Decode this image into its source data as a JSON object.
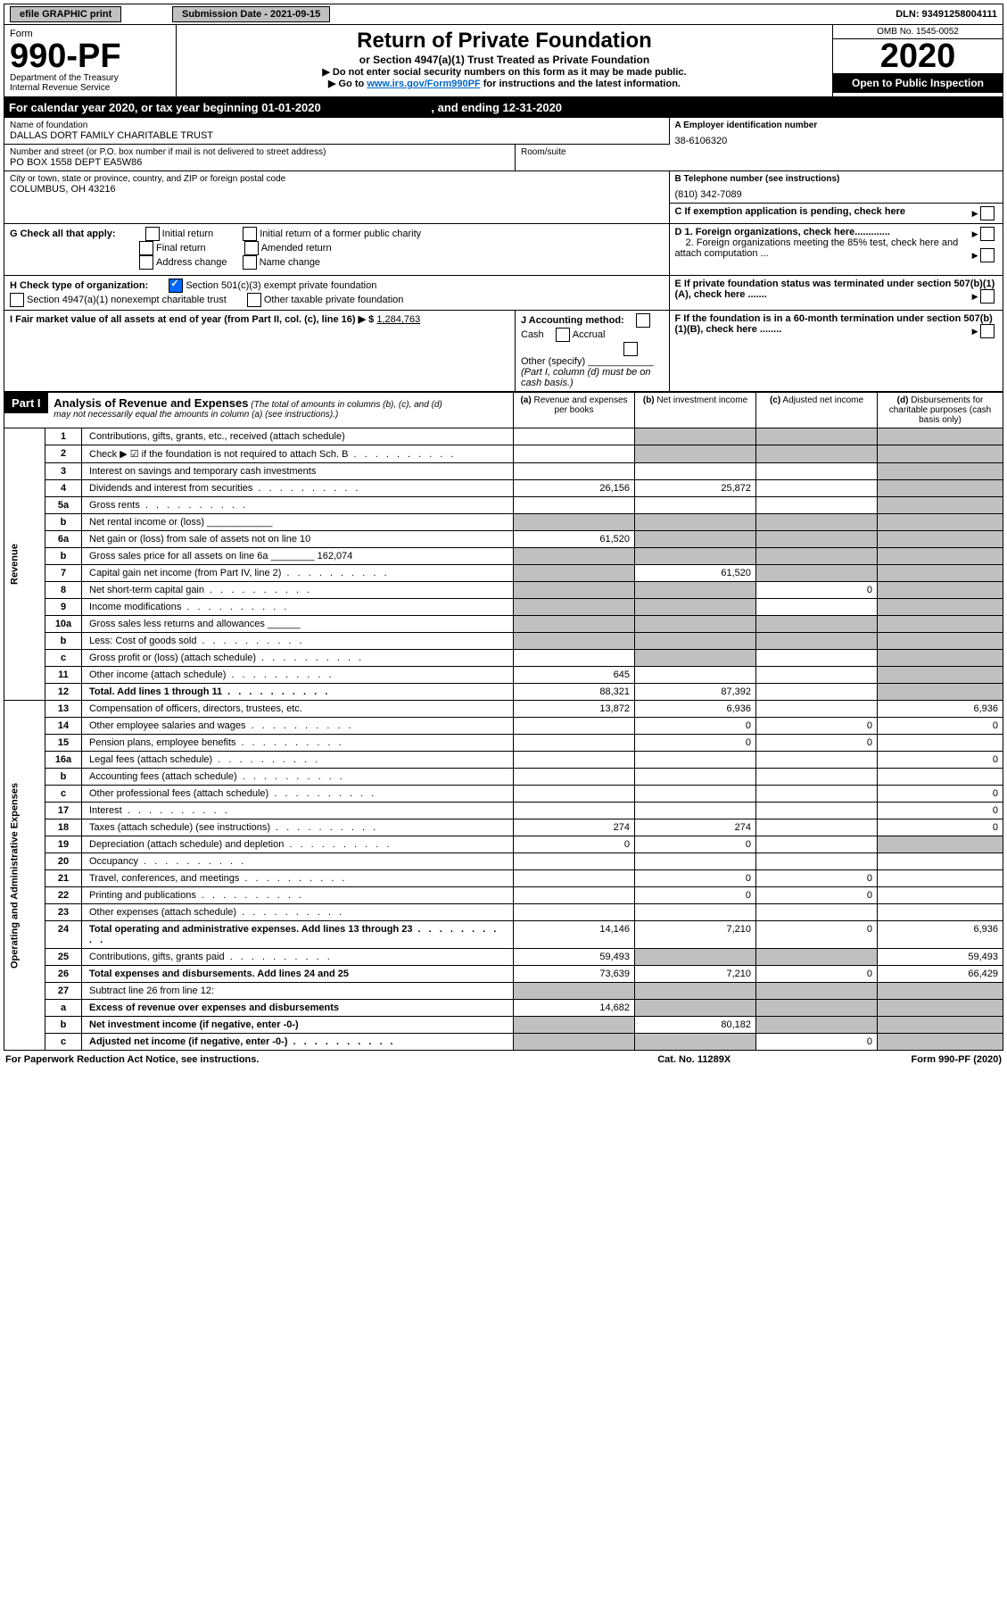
{
  "topbar": {
    "print": "efile GRAPHIC print",
    "sub_label": "Submission Date - 2021-09-15",
    "dln": "DLN: 93491258004111"
  },
  "header": {
    "form_word": "Form",
    "form_no": "990-PF",
    "dept1": "Department of the Treasury",
    "dept2": "Internal Revenue Service",
    "title": "Return of Private Foundation",
    "subtitle": "or Section 4947(a)(1) Trust Treated as Private Foundation",
    "caution1": "▶ Do not enter social security numbers on this form as it may be made public.",
    "caution2_pre": "▶ Go to ",
    "caution2_link": "www.irs.gov/Form990PF",
    "caution2_post": " for instructions and the latest information.",
    "omb": "OMB No. 1545-0052",
    "year": "2020",
    "opti": "Open to Public Inspection"
  },
  "cal": {
    "text_pre": "For calendar year 2020, or tax year beginning ",
    "begin": "01-01-2020",
    "text_mid": ", and ending ",
    "end": "12-31-2020"
  },
  "entity": {
    "name_label": "Name of foundation",
    "name": "DALLAS DORT FAMILY CHARITABLE TRUST",
    "addr_label": "Number and street (or P.O. box number if mail is not delivered to street address)",
    "addr": "PO BOX 1558 DEPT EA5W86",
    "room_label": "Room/suite",
    "city_label": "City or town, state or province, country, and ZIP or foreign postal code",
    "city": "COLUMBUS, OH  43216",
    "ein_label": "A Employer identification number",
    "ein": "38-6106320",
    "tel_label": "B Telephone number (see instructions)",
    "tel": "(810) 342-7089",
    "c_label": "C If exemption application is pending, check here",
    "g_label": "G Check all that apply:",
    "g_opts": [
      "Initial return",
      "Initial return of a former public charity",
      "Final return",
      "Amended return",
      "Address change",
      "Name change"
    ],
    "d1": "D 1. Foreign organizations, check here.............",
    "d2": "2. Foreign organizations meeting the 85% test, check here and attach computation ...",
    "h_label": "H Check type of organization:",
    "h1": "Section 501(c)(3) exempt private foundation",
    "h2": "Section 4947(a)(1) nonexempt charitable trust",
    "h3": "Other taxable private foundation",
    "e_label": "E If private foundation status was terminated under section 507(b)(1)(A), check here .......",
    "i_label": "I Fair market value of all assets at end of year (from Part II, col. (c), line 16) ▶ $ ",
    "i_val": "1,284,763",
    "j_label": "J Accounting method:",
    "j_cash": "Cash",
    "j_accrual": "Accrual",
    "j_other": "Other (specify)",
    "j_note": "(Part I, column (d) must be on cash basis.)",
    "f_label": "F If the foundation is in a 60-month termination under section 507(b)(1)(B), check here ........"
  },
  "part1": {
    "label": "Part I",
    "title": "Analysis of Revenue and Expenses",
    "note": "(The total of amounts in columns (b), (c), and (d) may not necessarily equal the amounts in column (a) (see instructions).)",
    "col_a": "Revenue and expenses per books",
    "col_b": "Net investment income",
    "col_c": "Adjusted net income",
    "col_d": "Disbursements for charitable purposes (cash basis only)"
  },
  "sections": {
    "revenue": "Revenue",
    "opex": "Operating and Administrative Expenses"
  },
  "lines": [
    {
      "no": "1",
      "desc": "Contributions, gifts, grants, etc., received (attach schedule)",
      "a": "",
      "b": "",
      "c": "",
      "d": "",
      "sh_b": true,
      "sh_c": true,
      "sh_d": true
    },
    {
      "no": "2",
      "desc": "Check ▶ ☑ if the foundation is not required to attach Sch. B",
      "dots": true,
      "a": "",
      "b": "",
      "c": "",
      "d": "",
      "sh_b": true,
      "sh_c": true,
      "sh_d": true
    },
    {
      "no": "3",
      "desc": "Interest on savings and temporary cash investments",
      "a": "",
      "b": "",
      "c": "",
      "d": "",
      "sh_d": true
    },
    {
      "no": "4",
      "desc": "Dividends and interest from securities",
      "dots": true,
      "a": "26,156",
      "b": "25,872",
      "c": "",
      "d": "",
      "sh_d": true
    },
    {
      "no": "5a",
      "desc": "Gross rents",
      "dots": true,
      "a": "",
      "b": "",
      "c": "",
      "d": "",
      "sh_d": true
    },
    {
      "no": "b",
      "desc": "Net rental income or (loss)  ____________",
      "a": "",
      "b": "",
      "c": "",
      "d": "",
      "sh_a": true,
      "sh_b": true,
      "sh_c": true,
      "sh_d": true
    },
    {
      "no": "6a",
      "desc": "Net gain or (loss) from sale of assets not on line 10",
      "a": "61,520",
      "b": "",
      "c": "",
      "d": "",
      "sh_b": true,
      "sh_c": true,
      "sh_d": true
    },
    {
      "no": "b",
      "desc": "Gross sales price for all assets on line 6a ________ 162,074",
      "a": "",
      "b": "",
      "c": "",
      "d": "",
      "sh_a": true,
      "sh_b": true,
      "sh_c": true,
      "sh_d": true
    },
    {
      "no": "7",
      "desc": "Capital gain net income (from Part IV, line 2)",
      "dots": true,
      "a": "",
      "b": "61,520",
      "c": "",
      "d": "",
      "sh_a": true,
      "sh_c": true,
      "sh_d": true
    },
    {
      "no": "8",
      "desc": "Net short-term capital gain",
      "dots": true,
      "a": "",
      "b": "",
      "c": "0",
      "d": "",
      "sh_a": true,
      "sh_b": true,
      "sh_d": true
    },
    {
      "no": "9",
      "desc": "Income modifications",
      "dots": true,
      "a": "",
      "b": "",
      "c": "",
      "d": "",
      "sh_a": true,
      "sh_b": true,
      "sh_d": true
    },
    {
      "no": "10a",
      "desc": "Gross sales less returns and allowances  ______",
      "a": "",
      "b": "",
      "c": "",
      "d": "",
      "sh_a": true,
      "sh_b": true,
      "sh_c": true,
      "sh_d": true
    },
    {
      "no": "b",
      "desc": "Less: Cost of goods sold",
      "dots": true,
      "a": "",
      "b": "",
      "c": "",
      "d": "",
      "sh_a": true,
      "sh_b": true,
      "sh_c": true,
      "sh_d": true
    },
    {
      "no": "c",
      "desc": "Gross profit or (loss) (attach schedule)",
      "dots": true,
      "a": "",
      "b": "",
      "c": "",
      "d": "",
      "sh_b": true,
      "sh_d": true
    },
    {
      "no": "11",
      "desc": "Other income (attach schedule)",
      "dots": true,
      "a": "645",
      "b": "",
      "c": "",
      "d": "",
      "sh_d": true
    },
    {
      "no": "12",
      "desc": "Total. Add lines 1 through 11",
      "bold": true,
      "dots": true,
      "a": "88,321",
      "b": "87,392",
      "c": "",
      "d": "",
      "sh_d": true
    },
    {
      "no": "13",
      "desc": "Compensation of officers, directors, trustees, etc.",
      "a": "13,872",
      "b": "6,936",
      "c": "",
      "d": "6,936"
    },
    {
      "no": "14",
      "desc": "Other employee salaries and wages",
      "dots": true,
      "a": "",
      "b": "0",
      "c": "0",
      "d": "0"
    },
    {
      "no": "15",
      "desc": "Pension plans, employee benefits",
      "dots": true,
      "a": "",
      "b": "0",
      "c": "0",
      "d": ""
    },
    {
      "no": "16a",
      "desc": "Legal fees (attach schedule)",
      "dots": true,
      "a": "",
      "b": "",
      "c": "",
      "d": "0"
    },
    {
      "no": "b",
      "desc": "Accounting fees (attach schedule)",
      "dots": true,
      "a": "",
      "b": "",
      "c": "",
      "d": ""
    },
    {
      "no": "c",
      "desc": "Other professional fees (attach schedule)",
      "dots": true,
      "a": "",
      "b": "",
      "c": "",
      "d": "0"
    },
    {
      "no": "17",
      "desc": "Interest",
      "dots": true,
      "a": "",
      "b": "",
      "c": "",
      "d": "0"
    },
    {
      "no": "18",
      "desc": "Taxes (attach schedule) (see instructions)",
      "dots": true,
      "a": "274",
      "b": "274",
      "c": "",
      "d": "0"
    },
    {
      "no": "19",
      "desc": "Depreciation (attach schedule) and depletion",
      "dots": true,
      "a": "0",
      "b": "0",
      "c": "",
      "d": "",
      "sh_d": true
    },
    {
      "no": "20",
      "desc": "Occupancy",
      "dots": true,
      "a": "",
      "b": "",
      "c": "",
      "d": ""
    },
    {
      "no": "21",
      "desc": "Travel, conferences, and meetings",
      "dots": true,
      "a": "",
      "b": "0",
      "c": "0",
      "d": ""
    },
    {
      "no": "22",
      "desc": "Printing and publications",
      "dots": true,
      "a": "",
      "b": "0",
      "c": "0",
      "d": ""
    },
    {
      "no": "23",
      "desc": "Other expenses (attach schedule)",
      "dots": true,
      "a": "",
      "b": "",
      "c": "",
      "d": ""
    },
    {
      "no": "24",
      "desc": "Total operating and administrative expenses. Add lines 13 through 23",
      "bold": true,
      "dots": true,
      "a": "14,146",
      "b": "7,210",
      "c": "0",
      "d": "6,936"
    },
    {
      "no": "25",
      "desc": "Contributions, gifts, grants paid",
      "dots": true,
      "a": "59,493",
      "b": "",
      "c": "",
      "d": "59,493",
      "sh_b": true,
      "sh_c": true
    },
    {
      "no": "26",
      "desc": "Total expenses and disbursements. Add lines 24 and 25",
      "bold": true,
      "a": "73,639",
      "b": "7,210",
      "c": "0",
      "d": "66,429"
    },
    {
      "no": "27",
      "desc": "Subtract line 26 from line 12:",
      "a": "",
      "b": "",
      "c": "",
      "d": "",
      "sh_a": true,
      "sh_b": true,
      "sh_c": true,
      "sh_d": true
    },
    {
      "no": "a",
      "desc": "Excess of revenue over expenses and disbursements",
      "bold": true,
      "a": "14,682",
      "b": "",
      "c": "",
      "d": "",
      "sh_b": true,
      "sh_c": true,
      "sh_d": true
    },
    {
      "no": "b",
      "desc": "Net investment income (if negative, enter -0-)",
      "bold": true,
      "a": "",
      "b": "80,182",
      "c": "",
      "d": "",
      "sh_a": true,
      "sh_c": true,
      "sh_d": true
    },
    {
      "no": "c",
      "desc": "Adjusted net income (if negative, enter -0-)",
      "bold": true,
      "dots": true,
      "a": "",
      "b": "",
      "c": "0",
      "d": "",
      "sh_a": true,
      "sh_b": true,
      "sh_d": true
    }
  ],
  "footer": {
    "left": "For Paperwork Reduction Act Notice, see instructions.",
    "mid": "Cat. No. 11289X",
    "right": "Form 990-PF (2020)"
  }
}
